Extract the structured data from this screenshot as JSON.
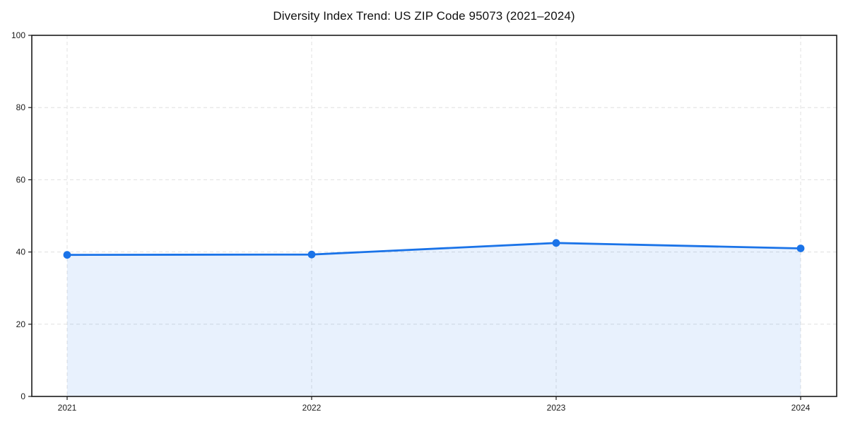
{
  "figure": {
    "background": "#ffffff"
  },
  "chart_data": {
    "type": "area",
    "title": "Diversity Index Trend: US ZIP Code 95073 (2021–2024)",
    "x": [
      2021,
      2022,
      2023,
      2024
    ],
    "xtick_labels": [
      "2021",
      "2022",
      "2023",
      "2024"
    ],
    "values": [
      39.2,
      39.3,
      42.5,
      41.0
    ],
    "xlabel": "",
    "ylabel": "",
    "ylim": [
      0,
      100
    ],
    "yticks": [
      0,
      20,
      40,
      60,
      80,
      100
    ],
    "grid": "dashed",
    "legend": "none",
    "colors": {
      "line": "#1a73e8",
      "marker": "#1a73e8",
      "area_fill": "#1a73e8",
      "area_opacity": 0.1,
      "grid": "#e0e0e0",
      "axis": "#1a1a1a",
      "text": "#1a1a1a",
      "background": "#ffffff"
    }
  }
}
